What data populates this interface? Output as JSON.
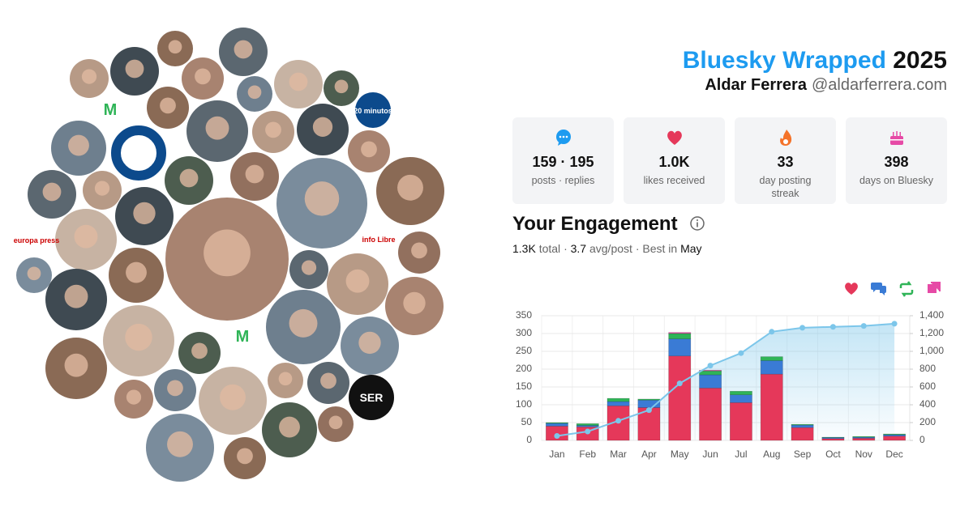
{
  "header": {
    "title": "Bluesky Wrapped",
    "year": "2025",
    "name": "Aldar Ferrera",
    "handle": "@aldarferrera.com"
  },
  "stats": [
    {
      "value": "159 · 195",
      "label": "posts · replies"
    },
    {
      "value": "1.0K",
      "label": "likes received"
    },
    {
      "value": "33",
      "label": "day posting streak"
    },
    {
      "value": "398",
      "label": "days on Bluesky"
    }
  ],
  "engagement": {
    "title": "Your Engagement",
    "total": "1.3K",
    "total_label": "total",
    "separator": "·",
    "avg": "3.7",
    "avg_label": "avg/post",
    "best_label": "Best in",
    "best": "May"
  },
  "avatars": {
    "logos": [
      "20 minutos",
      "europa press",
      "info Libre",
      "SER"
    ]
  },
  "chart_data": {
    "type": "bar",
    "stacked": true,
    "grid": true,
    "categories": [
      "Jan",
      "Feb",
      "Mar",
      "Apr",
      "May",
      "Jun",
      "Jul",
      "Aug",
      "Sep",
      "Oct",
      "Nov",
      "Dec"
    ],
    "series": [
      {
        "color": "#e5385a",
        "values": [
          40,
          38,
          97,
          92,
          237,
          147,
          106,
          186,
          36,
          5,
          6,
          12
        ]
      },
      {
        "color": "#3a7bd5",
        "values": [
          8,
          4,
          12,
          21,
          48,
          37,
          22,
          38,
          7,
          3,
          3,
          4
        ]
      },
      {
        "color": "#2fb457",
        "values": [
          2,
          5,
          9,
          3,
          15,
          11,
          10,
          11,
          2,
          1,
          2,
          2
        ]
      },
      {
        "color": "#e64aa6",
        "values": [
          0,
          0,
          0,
          0,
          3,
          2,
          0,
          0,
          0,
          0,
          0,
          0
        ]
      },
      {
        "type": "line",
        "axis": "y2",
        "color": "#7cc6ea",
        "values": [
          50,
          100,
          220,
          340,
          640,
          840,
          980,
          1220,
          1265,
          1275,
          1285,
          1310
        ]
      }
    ],
    "ylim": [
      0,
      350
    ],
    "yticks": [
      0,
      50,
      100,
      150,
      200,
      250,
      300,
      350
    ],
    "y2lim": [
      0,
      1400
    ],
    "y2ticks": [
      0,
      200,
      400,
      600,
      800,
      {
        "value": 1000,
        "label": "1,000"
      },
      {
        "value": 1200,
        "label": "1,200"
      },
      {
        "value": 1400,
        "label": "1,400"
      }
    ]
  }
}
